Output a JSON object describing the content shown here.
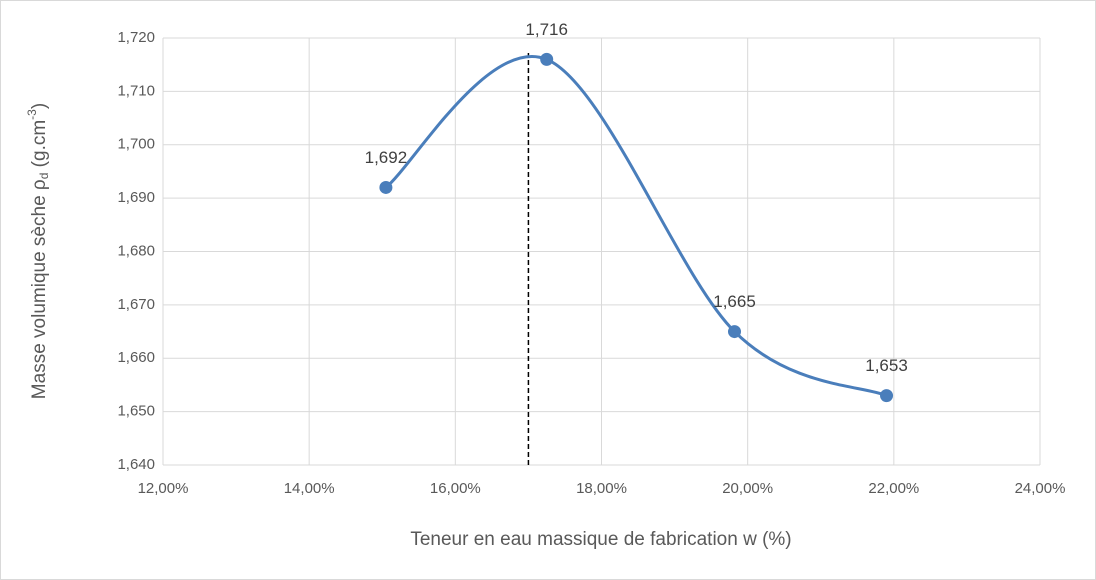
{
  "chart_data": {
    "type": "scatter",
    "xlabel": "Teneur en eau massique de fabrication w (%)",
    "ylabel_parts": [
      "Masse volumique sèche ρ",
      "d",
      " (g.cm",
      "-3",
      ")"
    ],
    "series": [
      {
        "color": "#4a7ebb",
        "x": [
          15.05,
          17.25,
          19.82,
          21.9
        ],
        "values": [
          1.692,
          1.716,
          1.665,
          1.653
        ],
        "value_labels": [
          "1,692",
          "1,716",
          "1,665",
          "1,653"
        ]
      }
    ],
    "smooth": true,
    "reference_line": {
      "x": 17,
      "y": 1.7172
    },
    "xlim": [
      12,
      24
    ],
    "xticks": [
      {
        "value": 12,
        "label": "12,00%"
      },
      {
        "value": 14,
        "label": "14,00%"
      },
      {
        "value": 16,
        "label": "16,00%"
      },
      {
        "value": 18,
        "label": "18,00%"
      },
      {
        "value": 20,
        "label": "20,00%"
      },
      {
        "value": 22,
        "label": "22,00%"
      },
      {
        "value": 24,
        "label": "24,00%"
      }
    ],
    "ylim": [
      1.64,
      1.72
    ],
    "yticks": [
      {
        "value": 1.64,
        "label": "1,640"
      },
      {
        "value": 1.65,
        "label": "1,650"
      },
      {
        "value": 1.66,
        "label": "1,660"
      },
      {
        "value": 1.67,
        "label": "1,670"
      },
      {
        "value": 1.68,
        "label": "1,680"
      },
      {
        "value": 1.69,
        "label": "1,690"
      },
      {
        "value": 1.7,
        "label": "1,700"
      },
      {
        "value": 1.71,
        "label": "1,710"
      },
      {
        "value": 1.72,
        "label": "1,720"
      }
    ],
    "grid": true
  }
}
